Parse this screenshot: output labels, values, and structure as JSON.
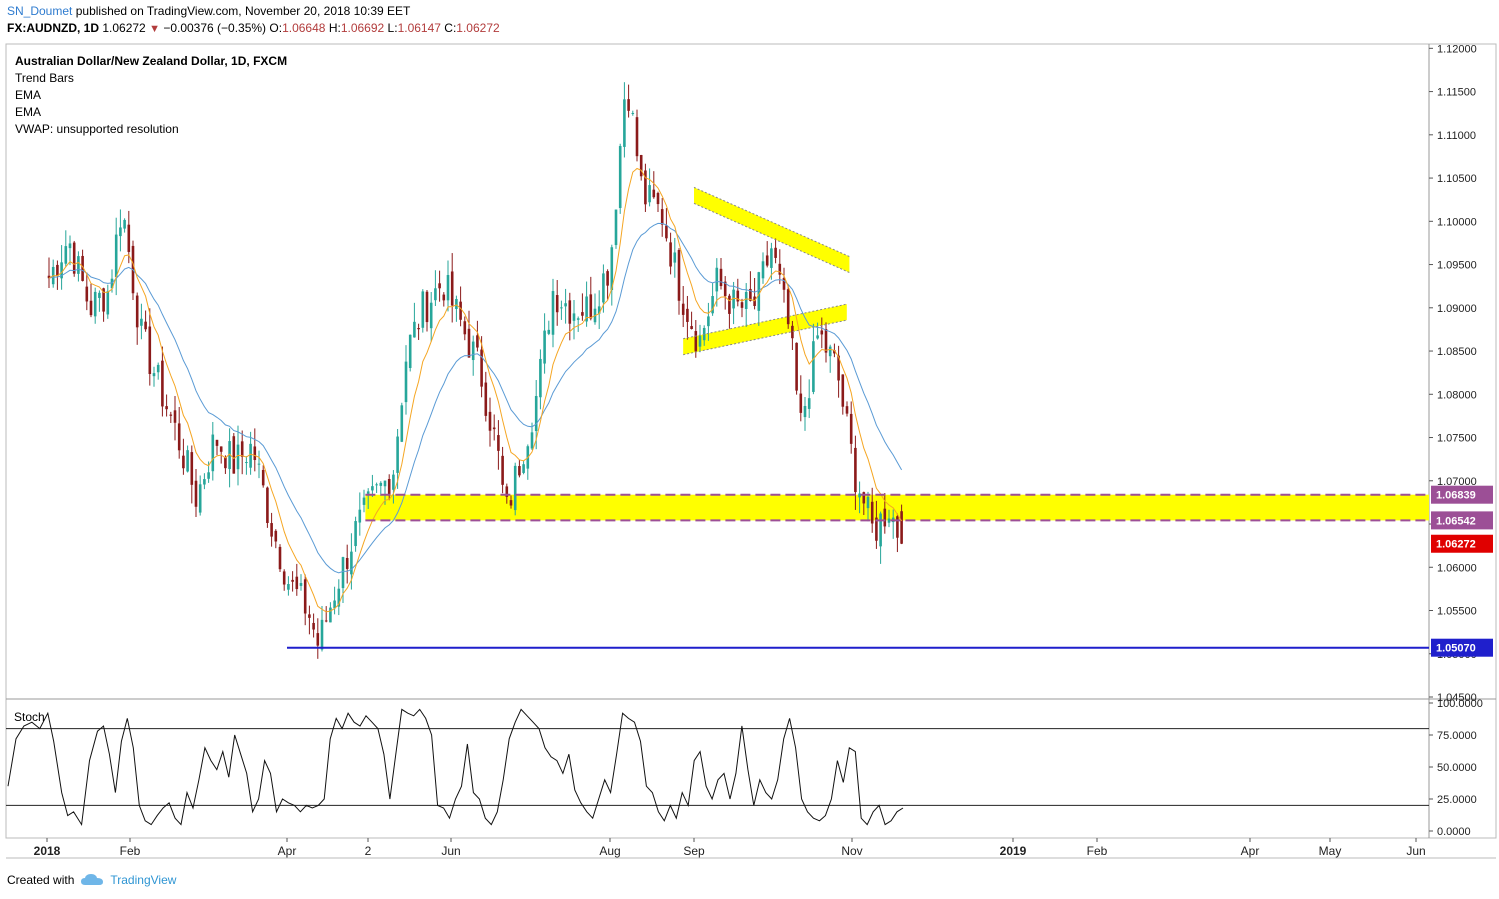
{
  "header": {
    "author": "SN_Doumet",
    "published_text": "published on TradingView.com, November 20, 2018 10:39 EET",
    "symbol": "FX:AUDNZD, 1D",
    "last": "1.06272",
    "change": "−0.00376 (−0.35%)",
    "o_label": "O:",
    "o": "1.06648",
    "h_label": "H:",
    "h": "1.06692",
    "l_label": "L:",
    "l": "1.06147",
    "c_label": "C:",
    "c": "1.06272",
    "down_arrow": "▼"
  },
  "legend": {
    "title": "Australian Dollar/New Zealand Dollar, 1D, FXCM",
    "items": [
      "Trend Bars",
      "EMA",
      "EMA",
      "VWAP: unsupported resolution"
    ]
  },
  "oscillator_label": "Stoch",
  "footer": {
    "created_with": "Created with",
    "brand": "TradingView"
  },
  "colors": {
    "up": "#26a69a",
    "down": "#8b1a1a",
    "ema_fast": "#f5a623",
    "ema_slow": "#5b9bd5",
    "zone": "#ffff00",
    "zone_line": "#9c4f96",
    "support": "#1f1fcc",
    "last_price": "#e00000"
  },
  "chart_data": [
    {
      "type": "candlestick",
      "title": "Australian Dollar/New Zealand Dollar, 1D, FXCM",
      "ylim": [
        1.045,
        1.1205
      ],
      "yticks": [
        "1.12000",
        "1.11500",
        "1.11000",
        "1.10500",
        "1.10000",
        "1.09500",
        "1.09000",
        "1.08500",
        "1.08000",
        "1.07500",
        "1.07000",
        "1.06500",
        "1.06000",
        "1.05500",
        "1.05000",
        "1.04500"
      ],
      "xticks": [
        "2018",
        "Feb",
        "Apr",
        "2",
        "Jun",
        "Aug",
        "Sep",
        "Nov",
        "2019",
        "Feb",
        "Apr",
        "May",
        "Jun"
      ],
      "x_tick_dates": [
        "2018-01-01",
        "2018-02-01",
        "2018-04-01",
        "2018-05-02",
        "2018-06-01",
        "2018-08-01",
        "2018-09-01",
        "2018-11-01",
        "2019-01-01",
        "2019-02-01",
        "2019-04-01",
        "2019-05-01",
        "2019-06-01"
      ],
      "price_path": [
        {
          "date": "2018-01-01",
          "close": 1.093
        },
        {
          "date": "2018-01-09",
          "close": 1.098
        },
        {
          "date": "2018-01-17",
          "close": 1.09
        },
        {
          "date": "2018-01-24",
          "close": 1.092
        },
        {
          "date": "2018-01-29",
          "close": 1.102
        },
        {
          "date": "2018-02-05",
          "close": 1.087
        },
        {
          "date": "2018-02-12",
          "close": 1.081
        },
        {
          "date": "2018-02-19",
          "close": 1.075
        },
        {
          "date": "2018-02-26",
          "close": 1.068
        },
        {
          "date": "2018-03-05",
          "close": 1.075
        },
        {
          "date": "2018-03-12",
          "close": 1.072
        },
        {
          "date": "2018-03-19",
          "close": 1.074
        },
        {
          "date": "2018-03-26",
          "close": 1.065
        },
        {
          "date": "2018-04-02",
          "close": 1.058
        },
        {
          "date": "2018-04-09",
          "close": 1.055
        },
        {
          "date": "2018-04-13",
          "close": 1.051
        },
        {
          "date": "2018-04-20",
          "close": 1.058
        },
        {
          "date": "2018-04-27",
          "close": 1.064
        },
        {
          "date": "2018-05-04",
          "close": 1.068
        },
        {
          "date": "2018-05-11",
          "close": 1.071
        },
        {
          "date": "2018-05-16",
          "close": 1.085
        },
        {
          "date": "2018-05-22",
          "close": 1.09
        },
        {
          "date": "2018-05-29",
          "close": 1.093
        },
        {
          "date": "2018-06-05",
          "close": 1.088
        },
        {
          "date": "2018-06-12",
          "close": 1.083
        },
        {
          "date": "2018-06-19",
          "close": 1.073
        },
        {
          "date": "2018-06-22",
          "close": 1.066
        },
        {
          "date": "2018-06-28",
          "close": 1.073
        },
        {
          "date": "2018-07-04",
          "close": 1.08
        },
        {
          "date": "2018-07-10",
          "close": 1.092
        },
        {
          "date": "2018-07-17",
          "close": 1.09
        },
        {
          "date": "2018-07-24",
          "close": 1.09
        },
        {
          "date": "2018-08-01",
          "close": 1.095
        },
        {
          "date": "2018-08-07",
          "close": 1.117
        },
        {
          "date": "2018-08-13",
          "close": 1.103
        },
        {
          "date": "2018-08-20",
          "close": 1.101
        },
        {
          "date": "2018-08-27",
          "close": 1.092
        },
        {
          "date": "2018-09-03",
          "close": 1.086
        },
        {
          "date": "2018-09-10",
          "close": 1.093
        },
        {
          "date": "2018-09-17",
          "close": 1.09
        },
        {
          "date": "2018-09-24",
          "close": 1.09
        },
        {
          "date": "2018-10-01",
          "close": 1.097
        },
        {
          "date": "2018-10-08",
          "close": 1.087
        },
        {
          "date": "2018-10-12",
          "close": 1.076
        },
        {
          "date": "2018-10-19",
          "close": 1.087
        },
        {
          "date": "2018-10-26",
          "close": 1.083
        },
        {
          "date": "2018-11-02",
          "close": 1.071
        },
        {
          "date": "2018-11-09",
          "close": 1.064
        },
        {
          "date": "2018-11-15",
          "close": 1.067
        },
        {
          "date": "2018-11-20",
          "close": 1.0627
        }
      ],
      "ema_fast_last": 1.067,
      "ema_slow_last": 1.0735,
      "annotations": {
        "support_zone": {
          "low": 1.06542,
          "high": 1.06839,
          "start": "2018-05-01",
          "extends_right": true
        },
        "support_line": {
          "value": 1.0507,
          "start": "2018-04-01",
          "extends_right": true
        },
        "falling_channel_upper": [
          {
            "date": "2018-09-01",
            "value": 1.103
          },
          {
            "date": "2018-10-31",
            "value": 1.095
          }
        ],
        "rising_channel_lower": [
          {
            "date": "2018-08-28",
            "value": 1.0855
          },
          {
            "date": "2018-10-30",
            "value": 1.0895
          }
        ]
      },
      "price_labels": [
        {
          "value": "1.06839",
          "color": "#9c4f96"
        },
        {
          "value": "1.06542",
          "color": "#9c4f96"
        },
        {
          "value": "1.06272",
          "color": "#e00000"
        },
        {
          "value": "1.05070",
          "color": "#1f1fcc"
        }
      ]
    },
    {
      "type": "line",
      "title": "Stoch",
      "ylim": [
        0,
        100
      ],
      "yticks": [
        "100.0000",
        "75.0000",
        "50.0000",
        "25.0000",
        "0.0000"
      ],
      "bands": [
        80,
        20
      ],
      "points": [
        [
          0,
          35
        ],
        [
          8,
          72
        ],
        [
          16,
          82
        ],
        [
          24,
          85
        ],
        [
          32,
          80
        ],
        [
          40,
          92
        ],
        [
          46,
          70
        ],
        [
          54,
          30
        ],
        [
          60,
          12
        ],
        [
          66,
          15
        ],
        [
          74,
          5
        ],
        [
          82,
          55
        ],
        [
          90,
          78
        ],
        [
          96,
          82
        ],
        [
          102,
          60
        ],
        [
          108,
          30
        ],
        [
          114,
          70
        ],
        [
          120,
          88
        ],
        [
          126,
          65
        ],
        [
          132,
          20
        ],
        [
          138,
          8
        ],
        [
          144,
          5
        ],
        [
          150,
          12
        ],
        [
          156,
          18
        ],
        [
          162,
          22
        ],
        [
          168,
          10
        ],
        [
          174,
          5
        ],
        [
          180,
          30
        ],
        [
          186,
          18
        ],
        [
          192,
          40
        ],
        [
          198,
          65
        ],
        [
          204,
          55
        ],
        [
          210,
          48
        ],
        [
          216,
          62
        ],
        [
          222,
          42
        ],
        [
          228,
          75
        ],
        [
          234,
          60
        ],
        [
          240,
          45
        ],
        [
          246,
          15
        ],
        [
          252,
          25
        ],
        [
          258,
          55
        ],
        [
          264,
          45
        ],
        [
          270,
          15
        ],
        [
          276,
          25
        ],
        [
          282,
          22
        ],
        [
          288,
          20
        ],
        [
          294,
          15
        ],
        [
          300,
          20
        ],
        [
          306,
          18
        ],
        [
          312,
          20
        ],
        [
          318,
          25
        ],
        [
          324,
          72
        ],
        [
          330,
          88
        ],
        [
          336,
          80
        ],
        [
          342,
          92
        ],
        [
          348,
          85
        ],
        [
          354,
          82
        ],
        [
          360,
          90
        ],
        [
          366,
          85
        ],
        [
          372,
          80
        ],
        [
          378,
          60
        ],
        [
          384,
          25
        ],
        [
          390,
          60
        ],
        [
          396,
          95
        ],
        [
          402,
          92
        ],
        [
          408,
          90
        ],
        [
          414,
          95
        ],
        [
          420,
          88
        ],
        [
          426,
          75
        ],
        [
          432,
          20
        ],
        [
          438,
          18
        ],
        [
          444,
          10
        ],
        [
          450,
          25
        ],
        [
          456,
          35
        ],
        [
          462,
          68
        ],
        [
          468,
          30
        ],
        [
          474,
          25
        ],
        [
          480,
          10
        ],
        [
          486,
          5
        ],
        [
          492,
          15
        ],
        [
          498,
          40
        ],
        [
          504,
          72
        ],
        [
          510,
          85
        ],
        [
          516,
          95
        ],
        [
          522,
          90
        ],
        [
          528,
          85
        ],
        [
          534,
          80
        ],
        [
          540,
          65
        ],
        [
          546,
          58
        ],
        [
          552,
          55
        ],
        [
          558,
          45
        ],
        [
          564,
          60
        ],
        [
          570,
          32
        ],
        [
          576,
          22
        ],
        [
          582,
          15
        ],
        [
          588,
          10
        ],
        [
          594,
          25
        ],
        [
          600,
          40
        ],
        [
          606,
          30
        ],
        [
          612,
          60
        ],
        [
          618,
          92
        ],
        [
          624,
          88
        ],
        [
          630,
          85
        ],
        [
          636,
          70
        ],
        [
          642,
          35
        ],
        [
          648,
          30
        ],
        [
          654,
          15
        ],
        [
          660,
          8
        ],
        [
          666,
          20
        ],
        [
          672,
          10
        ],
        [
          678,
          30
        ],
        [
          684,
          20
        ],
        [
          690,
          55
        ],
        [
          696,
          62
        ],
        [
          702,
          35
        ],
        [
          708,
          25
        ],
        [
          714,
          40
        ],
        [
          720,
          45
        ],
        [
          726,
          25
        ],
        [
          732,
          45
        ],
        [
          738,
          82
        ],
        [
          744,
          48
        ],
        [
          750,
          20
        ],
        [
          756,
          40
        ],
        [
          762,
          30
        ],
        [
          768,
          25
        ],
        [
          774,
          40
        ],
        [
          780,
          72
        ],
        [
          786,
          88
        ],
        [
          792,
          65
        ],
        [
          798,
          25
        ],
        [
          804,
          15
        ],
        [
          810,
          10
        ],
        [
          816,
          8
        ],
        [
          822,
          12
        ],
        [
          828,
          25
        ],
        [
          834,
          55
        ],
        [
          840,
          38
        ],
        [
          846,
          65
        ],
        [
          852,
          62
        ],
        [
          858,
          10
        ],
        [
          864,
          5
        ],
        [
          870,
          15
        ],
        [
          876,
          20
        ],
        [
          882,
          5
        ],
        [
          888,
          8
        ],
        [
          894,
          15
        ],
        [
          900,
          18
        ]
      ]
    }
  ]
}
